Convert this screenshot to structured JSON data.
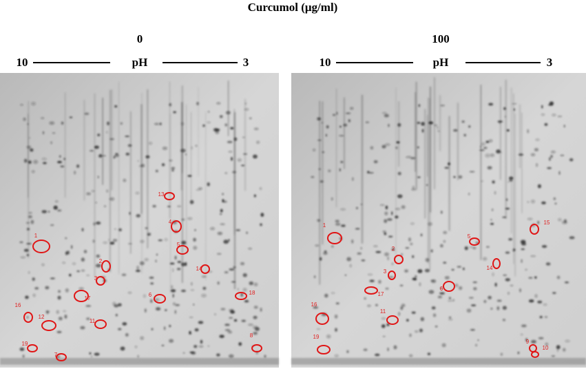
{
  "title": "Curcumol (μg/ml)",
  "panels": [
    {
      "label": "0",
      "ph_left": "10",
      "ph_label": "pH",
      "ph_right": "3",
      "spots": [
        "1",
        "2",
        "3",
        "4",
        "5",
        "6",
        "7",
        "8",
        "11",
        "12",
        "13",
        "14",
        "16",
        "17",
        "18",
        "19"
      ]
    },
    {
      "label": "100",
      "ph_left": "10",
      "ph_label": "pH",
      "ph_right": "3",
      "spots": [
        "1",
        "2",
        "3",
        "5",
        "6",
        "9",
        "10",
        "11",
        "14",
        "15",
        "16",
        "17",
        "19"
      ]
    }
  ]
}
